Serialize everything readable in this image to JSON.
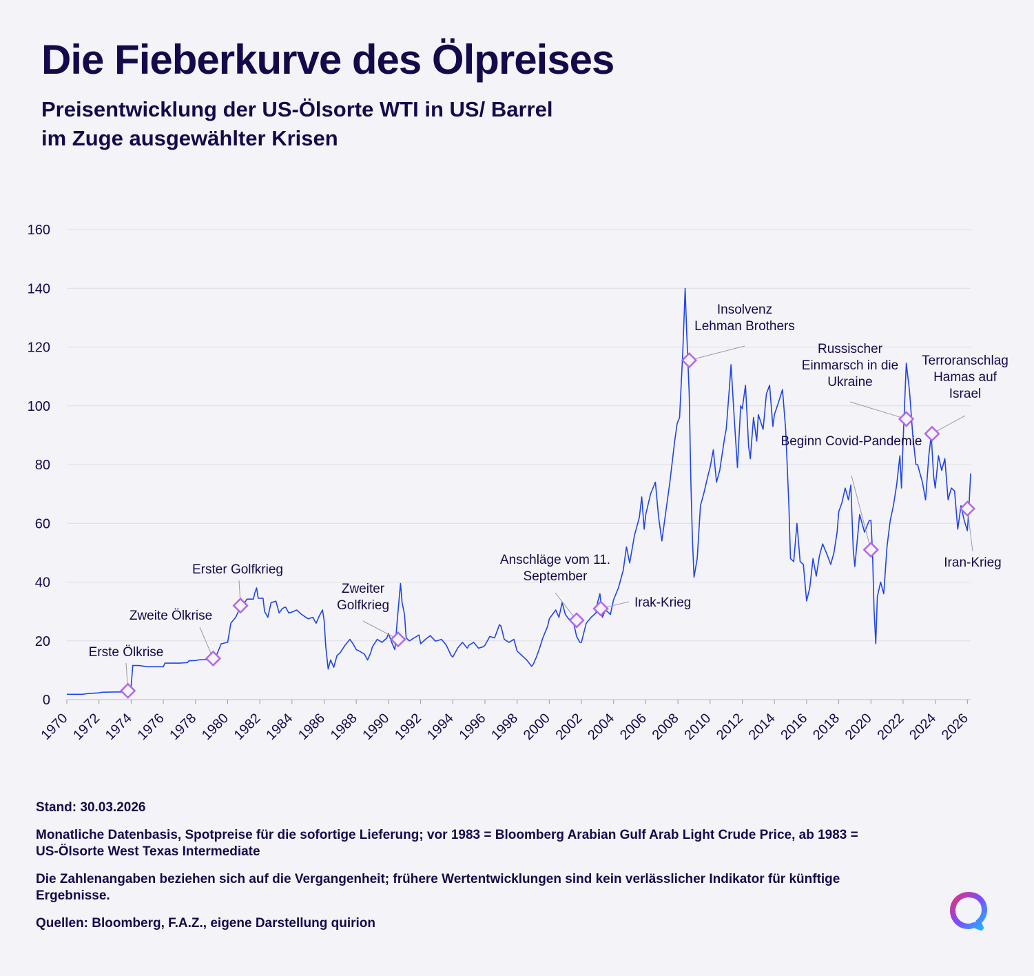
{
  "header": {
    "title": "Die Fieberkurve des Ölpreises",
    "subtitle": "Preisentwicklung der US-Ölsorte WTI in US/ Barrel im Zuge ausgewählter Krisen"
  },
  "footer": {
    "stand": "Stand: 30.03.2026",
    "basis": "Monatliche Datenbasis, Spotpreise für die sofortige Lieferung; vor 1983 = Bloomberg Arabian Gulf Arab Light Crude Price, ab 1983 = US-Ölsorte West Texas Intermediate",
    "disclaimer": "Die Zahlenangaben beziehen sich auf die Vergangenheit; frühere Wertentwicklungen sind kein verlässlicher Indikator für künftige Ergebnisse.",
    "sources": "Quellen: Bloomberg, F.A.Z., eigene Darstellung quirion"
  },
  "colors": {
    "line": "#1f45e6",
    "marker": "#b467ea",
    "text": "#140a4a",
    "grid": "#dcdce6",
    "background": "#f3f3f8"
  },
  "chart_data": {
    "type": "line",
    "xlim": [
      1970,
      2026.2
    ],
    "ylim": [
      0,
      160
    ],
    "yticks": [
      0,
      20,
      40,
      60,
      80,
      100,
      120,
      140,
      160
    ],
    "xticks": [
      1970,
      1972,
      1974,
      1976,
      1978,
      1980,
      1982,
      1984,
      1986,
      1988,
      1990,
      1992,
      1994,
      1996,
      1998,
      2000,
      2002,
      2004,
      2006,
      2008,
      2010,
      2012,
      2014,
      2016,
      2018,
      2020,
      2022,
      2024,
      2026
    ],
    "grid": true,
    "series": [
      {
        "points": [
          [
            1970.0,
            1.8
          ],
          [
            1971.0,
            1.8
          ],
          [
            1971.2,
            2.0
          ],
          [
            1972.0,
            2.3
          ],
          [
            1972.2,
            2.5
          ],
          [
            1973.0,
            2.6
          ],
          [
            1973.8,
            2.6
          ],
          [
            1973.9,
            3.0
          ],
          [
            1974.0,
            4.5
          ],
          [
            1974.1,
            11.6
          ],
          [
            1974.5,
            11.6
          ],
          [
            1975.0,
            11.2
          ],
          [
            1976.0,
            11.2
          ],
          [
            1976.1,
            12.4
          ],
          [
            1977.0,
            12.4
          ],
          [
            1977.5,
            12.6
          ],
          [
            1977.6,
            13.2
          ],
          [
            1978.0,
            13.3
          ],
          [
            1978.3,
            13.6
          ],
          [
            1978.8,
            13.6
          ],
          [
            1979.0,
            13.8
          ],
          [
            1979.3,
            15.0
          ],
          [
            1979.6,
            19.0
          ],
          [
            1980.0,
            19.5
          ],
          [
            1980.2,
            26.0
          ],
          [
            1980.5,
            28.0
          ],
          [
            1980.8,
            31.5
          ],
          [
            1981.0,
            32.5
          ],
          [
            1981.2,
            34.2
          ],
          [
            1981.6,
            34.2
          ],
          [
            1981.7,
            36.5
          ],
          [
            1981.8,
            38.0
          ],
          [
            1981.9,
            34.5
          ],
          [
            1982.2,
            34.5
          ],
          [
            1982.3,
            30.0
          ],
          [
            1982.5,
            28.0
          ],
          [
            1982.7,
            33.0
          ],
          [
            1983.0,
            33.5
          ],
          [
            1983.2,
            29.5
          ],
          [
            1983.4,
            31.0
          ],
          [
            1983.6,
            31.5
          ],
          [
            1983.8,
            29.5
          ],
          [
            1984.0,
            29.8
          ],
          [
            1984.3,
            30.5
          ],
          [
            1984.6,
            29.0
          ],
          [
            1985.0,
            27.5
          ],
          [
            1985.3,
            28.0
          ],
          [
            1985.5,
            26.0
          ],
          [
            1985.7,
            28.5
          ],
          [
            1985.9,
            30.5
          ],
          [
            1986.0,
            27.0
          ],
          [
            1986.1,
            18.0
          ],
          [
            1986.2,
            13.0
          ],
          [
            1986.25,
            10.4
          ],
          [
            1986.4,
            13.5
          ],
          [
            1986.6,
            11.0
          ],
          [
            1986.8,
            15.0
          ],
          [
            1987.0,
            16.0
          ],
          [
            1987.3,
            18.5
          ],
          [
            1987.6,
            20.5
          ],
          [
            1987.8,
            19.0
          ],
          [
            1988.0,
            17.0
          ],
          [
            1988.2,
            16.5
          ],
          [
            1988.5,
            15.5
          ],
          [
            1988.7,
            13.5
          ],
          [
            1988.9,
            16.0
          ],
          [
            1989.0,
            18.0
          ],
          [
            1989.3,
            20.5
          ],
          [
            1989.6,
            19.5
          ],
          [
            1989.9,
            21.0
          ],
          [
            1990.0,
            22.5
          ],
          [
            1990.2,
            19.5
          ],
          [
            1990.4,
            17.0
          ],
          [
            1990.55,
            27.0
          ],
          [
            1990.65,
            33.5
          ],
          [
            1990.75,
            39.5
          ],
          [
            1990.85,
            33.0
          ],
          [
            1991.0,
            29.0
          ],
          [
            1991.1,
            21.0
          ],
          [
            1991.3,
            20.0
          ],
          [
            1991.6,
            21.0
          ],
          [
            1991.9,
            22.0
          ],
          [
            1992.0,
            19.0
          ],
          [
            1992.3,
            20.5
          ],
          [
            1992.6,
            21.8
          ],
          [
            1992.9,
            20.0
          ],
          [
            1993.0,
            20.0
          ],
          [
            1993.3,
            20.5
          ],
          [
            1993.6,
            18.5
          ],
          [
            1993.9,
            15.0
          ],
          [
            1994.0,
            14.5
          ],
          [
            1994.3,
            17.5
          ],
          [
            1994.6,
            19.5
          ],
          [
            1994.9,
            17.5
          ],
          [
            1995.0,
            18.5
          ],
          [
            1995.3,
            19.5
          ],
          [
            1995.6,
            17.5
          ],
          [
            1995.9,
            18.0
          ],
          [
            1996.0,
            18.5
          ],
          [
            1996.3,
            21.5
          ],
          [
            1996.6,
            21.0
          ],
          [
            1996.9,
            25.5
          ],
          [
            1997.0,
            25.0
          ],
          [
            1997.2,
            20.5
          ],
          [
            1997.5,
            19.5
          ],
          [
            1997.8,
            20.5
          ],
          [
            1998.0,
            16.5
          ],
          [
            1998.3,
            15.0
          ],
          [
            1998.6,
            13.5
          ],
          [
            1998.9,
            11.3
          ],
          [
            1999.0,
            12.0
          ],
          [
            1999.2,
            14.5
          ],
          [
            1999.4,
            17.5
          ],
          [
            1999.6,
            21.0
          ],
          [
            1999.9,
            25.0
          ],
          [
            2000.0,
            27.5
          ],
          [
            2000.2,
            29.0
          ],
          [
            2000.4,
            30.5
          ],
          [
            2000.6,
            28.0
          ],
          [
            2000.8,
            33.0
          ],
          [
            2001.0,
            29.0
          ],
          [
            2001.2,
            27.5
          ],
          [
            2001.5,
            26.5
          ],
          [
            2001.7,
            21.5
          ],
          [
            2001.9,
            19.5
          ],
          [
            2002.0,
            19.5
          ],
          [
            2002.3,
            26.0
          ],
          [
            2002.6,
            28.0
          ],
          [
            2002.9,
            29.5
          ],
          [
            2003.0,
            33.0
          ],
          [
            2003.15,
            36.0
          ],
          [
            2003.3,
            28.0
          ],
          [
            2003.5,
            30.5
          ],
          [
            2003.8,
            29.0
          ],
          [
            2004.0,
            34.0
          ],
          [
            2004.3,
            38.0
          ],
          [
            2004.6,
            44.0
          ],
          [
            2004.8,
            52.0
          ],
          [
            2005.0,
            46.5
          ],
          [
            2005.3,
            56.0
          ],
          [
            2005.6,
            62.0
          ],
          [
            2005.75,
            69.0
          ],
          [
            2005.9,
            58.0
          ],
          [
            2006.0,
            63.0
          ],
          [
            2006.3,
            70.0
          ],
          [
            2006.6,
            74.0
          ],
          [
            2006.8,
            62.0
          ],
          [
            2007.0,
            54.0
          ],
          [
            2007.2,
            62.0
          ],
          [
            2007.5,
            74.0
          ],
          [
            2007.8,
            88.0
          ],
          [
            2007.95,
            94.0
          ],
          [
            2008.1,
            96.0
          ],
          [
            2008.3,
            118.0
          ],
          [
            2008.45,
            140.0
          ],
          [
            2008.55,
            124.0
          ],
          [
            2008.7,
            104.0
          ],
          [
            2008.8,
            75.0
          ],
          [
            2008.9,
            55.0
          ],
          [
            2009.0,
            41.7
          ],
          [
            2009.2,
            48.0
          ],
          [
            2009.4,
            66.0
          ],
          [
            2009.6,
            70.0
          ],
          [
            2009.9,
            77.0
          ],
          [
            2010.0,
            79.0
          ],
          [
            2010.2,
            85.0
          ],
          [
            2010.4,
            74.0
          ],
          [
            2010.6,
            78.0
          ],
          [
            2010.9,
            89.0
          ],
          [
            2011.0,
            92.0
          ],
          [
            2011.2,
            106.0
          ],
          [
            2011.3,
            114.0
          ],
          [
            2011.5,
            96.0
          ],
          [
            2011.7,
            79.0
          ],
          [
            2011.9,
            100.0
          ],
          [
            2012.0,
            99.0
          ],
          [
            2012.2,
            107.0
          ],
          [
            2012.4,
            86.0
          ],
          [
            2012.5,
            82.0
          ],
          [
            2012.7,
            96.0
          ],
          [
            2012.9,
            88.0
          ],
          [
            2013.0,
            97.0
          ],
          [
            2013.3,
            92.0
          ],
          [
            2013.5,
            104.0
          ],
          [
            2013.7,
            107.0
          ],
          [
            2013.9,
            93.0
          ],
          [
            2014.0,
            97.0
          ],
          [
            2014.3,
            102.0
          ],
          [
            2014.5,
            105.5
          ],
          [
            2014.7,
            92.0
          ],
          [
            2014.9,
            66.0
          ],
          [
            2015.0,
            48.0
          ],
          [
            2015.2,
            47.0
          ],
          [
            2015.4,
            60.0
          ],
          [
            2015.6,
            47.0
          ],
          [
            2015.8,
            46.0
          ],
          [
            2016.0,
            33.6
          ],
          [
            2016.2,
            38.0
          ],
          [
            2016.4,
            48.0
          ],
          [
            2016.6,
            42.0
          ],
          [
            2016.8,
            49.0
          ],
          [
            2017.0,
            53.0
          ],
          [
            2017.3,
            49.0
          ],
          [
            2017.5,
            46.0
          ],
          [
            2017.7,
            50.0
          ],
          [
            2017.9,
            57.0
          ],
          [
            2018.0,
            64.0
          ],
          [
            2018.2,
            67.0
          ],
          [
            2018.4,
            72.0
          ],
          [
            2018.6,
            68.0
          ],
          [
            2018.75,
            73.0
          ],
          [
            2018.9,
            51.0
          ],
          [
            2019.0,
            45.3
          ],
          [
            2019.3,
            63.0
          ],
          [
            2019.6,
            57.0
          ],
          [
            2019.9,
            61.0
          ],
          [
            2020.0,
            61.0
          ],
          [
            2020.1,
            50.0
          ],
          [
            2020.2,
            30.0
          ],
          [
            2020.3,
            19.0
          ],
          [
            2020.4,
            35.0
          ],
          [
            2020.6,
            40.0
          ],
          [
            2020.8,
            36.0
          ],
          [
            2021.0,
            52.0
          ],
          [
            2021.2,
            61.0
          ],
          [
            2021.4,
            66.0
          ],
          [
            2021.6,
            73.0
          ],
          [
            2021.8,
            83.0
          ],
          [
            2021.9,
            72.0
          ],
          [
            2022.0,
            88.0
          ],
          [
            2022.2,
            114.5
          ],
          [
            2022.4,
            105.0
          ],
          [
            2022.6,
            90.0
          ],
          [
            2022.8,
            80.0
          ],
          [
            2022.9,
            80.0
          ],
          [
            2023.0,
            78.0
          ],
          [
            2023.2,
            74.0
          ],
          [
            2023.4,
            68.0
          ],
          [
            2023.6,
            83.0
          ],
          [
            2023.75,
            90.0
          ],
          [
            2023.9,
            76.0
          ],
          [
            2024.0,
            72.0
          ],
          [
            2024.2,
            83.0
          ],
          [
            2024.4,
            78.0
          ],
          [
            2024.6,
            82.0
          ],
          [
            2024.8,
            68.0
          ],
          [
            2025.0,
            72.0
          ],
          [
            2025.2,
            71.0
          ],
          [
            2025.4,
            58.0
          ],
          [
            2025.6,
            66.0
          ],
          [
            2025.8,
            61.0
          ],
          [
            2026.0,
            57.5
          ],
          [
            2026.1,
            66.0
          ],
          [
            2026.2,
            77.0
          ]
        ]
      }
    ],
    "annotations": [
      {
        "label": "Erste Ölkrise",
        "x": 1973.8,
        "y": 3.0
      },
      {
        "label": "Zweite Ölkrise",
        "x": 1979.1,
        "y": 14.0
      },
      {
        "label": "Erster Golfkrieg",
        "x": 1980.8,
        "y": 32.0
      },
      {
        "label": "Zweiter Golfkrieg",
        "x": 1990.6,
        "y": 20.5
      },
      {
        "label": "Anschläge vom 11. September",
        "x": 2001.7,
        "y": 27.0
      },
      {
        "label": "Irak-Krieg",
        "x": 2003.2,
        "y": 31.0
      },
      {
        "label": "Insolvenz Lehman Brothers",
        "x": 2008.7,
        "y": 115.5
      },
      {
        "label": "Beginn Covid-Pandemie",
        "x": 2020.0,
        "y": 51.0
      },
      {
        "label": "Russischer Einmarsch in die Ukraine",
        "x": 2022.2,
        "y": 95.5
      },
      {
        "label": "Terroranschlag Hamas auf Israel",
        "x": 2023.8,
        "y": 90.5
      },
      {
        "label": "Iran-Krieg",
        "x": 2026.0,
        "y": 65.0
      }
    ]
  }
}
